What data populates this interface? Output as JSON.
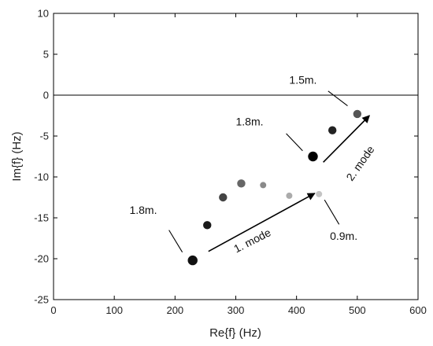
{
  "chart_data": {
    "type": "scatter",
    "xlabel": "Re{f} (Hz)",
    "ylabel": "Im{f} (Hz)",
    "xlim": [
      0,
      600
    ],
    "ylim": [
      -25,
      10
    ],
    "x_ticks": [
      "0",
      "100",
      "200",
      "300",
      "400",
      "500",
      "600"
    ],
    "y_ticks": [
      "10",
      "5",
      "0",
      "-5",
      "-10",
      "-15",
      "-20",
      "-25"
    ],
    "reference_line_y": 0,
    "grid": false,
    "series": [
      {
        "points": [
          {
            "x": 229,
            "y": -20.2,
            "color": "#111111",
            "size": "large"
          },
          {
            "x": 253,
            "y": -15.9,
            "color": "#1a1a1a",
            "size": "medium"
          },
          {
            "x": 279,
            "y": -12.5,
            "color": "#444444",
            "size": "medium"
          },
          {
            "x": 309,
            "y": -10.8,
            "color": "#666666",
            "size": "medium"
          },
          {
            "x": 345,
            "y": -11.0,
            "color": "#8a8a8a",
            "size": "small"
          },
          {
            "x": 388,
            "y": -12.3,
            "color": "#ababab",
            "size": "small"
          },
          {
            "x": 437,
            "y": -12.1,
            "color": "#c4c4c4",
            "size": "small"
          }
        ]
      },
      {
        "points": [
          {
            "x": 427,
            "y": -7.5,
            "color": "#000000",
            "size": "large"
          },
          {
            "x": 459,
            "y": -4.3,
            "color": "#222222",
            "size": "medium"
          },
          {
            "x": 500,
            "y": -2.3,
            "color": "#555555",
            "size": "medium"
          }
        ]
      }
    ],
    "annotations": [
      {
        "text": "1.8m.",
        "label": [
          125,
          -14.5
        ],
        "anchor": "start",
        "line": [
          [
            190,
            -16.5
          ],
          [
            212,
            -19.2
          ]
        ]
      },
      {
        "text": "0.9m.",
        "label": [
          455,
          -17.7
        ],
        "anchor": "start",
        "line": [
          [
            446,
            -12.8
          ],
          [
            470,
            -15.8
          ]
        ]
      },
      {
        "text": "1.8m.",
        "label": [
          300,
          -3.7
        ],
        "anchor": "start",
        "line": [
          [
            383,
            -4.7
          ],
          [
            410,
            -6.8
          ]
        ]
      },
      {
        "text": "1.5m.",
        "label": [
          388,
          1.4
        ],
        "anchor": "start",
        "line": [
          [
            452,
            0.5
          ],
          [
            484,
            -1.3
          ]
        ]
      },
      {
        "text": "1. mode",
        "label": [
          330,
          -18.2
        ],
        "rotate": -27
      },
      {
        "text": "2. mode",
        "label": [
          510,
          -8.6
        ],
        "rotate": -55
      }
    ],
    "arrows": [
      {
        "from": [
          255,
          -19.1
        ],
        "to": [
          430,
          -12.0
        ]
      },
      {
        "from": [
          444,
          -8.2
        ],
        "to": [
          520,
          -2.5
        ]
      }
    ]
  }
}
